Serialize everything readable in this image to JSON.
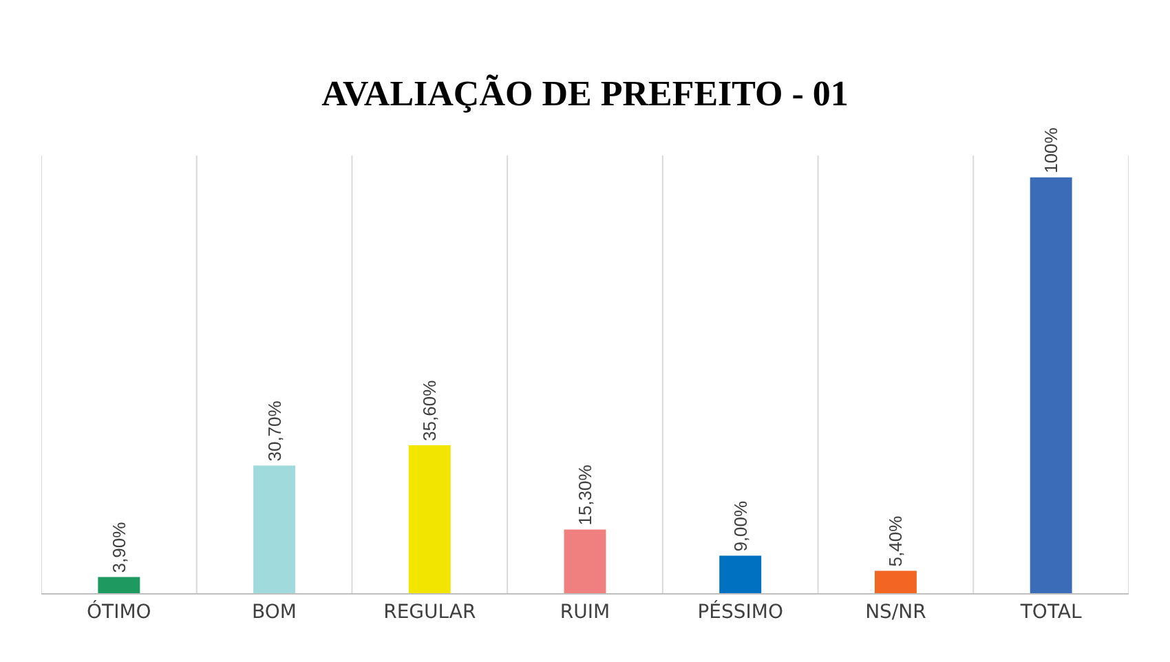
{
  "chart_data": {
    "type": "bar",
    "title": "AVALIAÇÃO DE PREFEITO - 01",
    "categories": [
      "ÓTIMO",
      "BOM",
      "REGULAR",
      "RUIM",
      "PÉSSIMO",
      "NS/NR",
      "TOTAL"
    ],
    "values": [
      3.9,
      30.7,
      35.6,
      15.3,
      9.0,
      5.4,
      100
    ],
    "value_labels": [
      "3,90%",
      "30,70%",
      "35,60%",
      "15,30%",
      "9,00%",
      "5,40%",
      "100%"
    ],
    "colors": [
      "#1e9a60",
      "#a0dadc",
      "#f2e600",
      "#f08080",
      "#0070c0",
      "#f26522",
      "#3a6cb8"
    ],
    "tick_labels": "x",
    "grid": "x"
  }
}
